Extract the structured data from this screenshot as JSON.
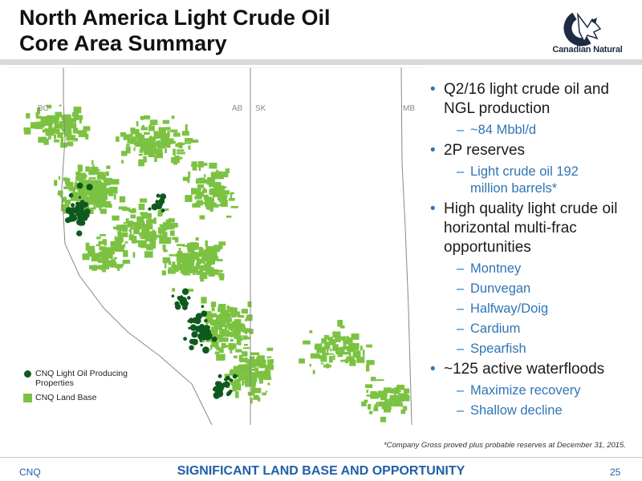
{
  "title": {
    "line1": "North America Light Crude Oil",
    "line2": "Core Area Summary"
  },
  "logo": {
    "name": "Canadian Natural"
  },
  "map": {
    "province_labels": [
      "BC",
      "AB",
      "SK",
      "MB"
    ],
    "legend": [
      {
        "line1": "CNQ Light Oil Producing",
        "line2": "Properties",
        "color": "#0e5a1e"
      },
      {
        "line1": "CNQ Land Base",
        "color": "#7cc242"
      }
    ]
  },
  "bullets": [
    {
      "line1": "Q2/16 light crude oil and",
      "line2": "NGL production",
      "subs": [
        {
          "line1": "~84 Mbbl/d"
        }
      ]
    },
    {
      "line1": "2P reserves",
      "subs": [
        {
          "line1": "Light crude oil 192",
          "line2": "million barrels*"
        }
      ]
    },
    {
      "line1": "High quality light crude oil",
      "line2": "horizontal multi-frac",
      "line3": "opportunities",
      "subs": [
        {
          "line1": "Montney"
        },
        {
          "line1": "Dunvegan"
        },
        {
          "line1": "Halfway/Doig"
        },
        {
          "line1": "Cardium"
        },
        {
          "line1": "Spearfish"
        }
      ]
    },
    {
      "line1": "~125 active waterfloods",
      "subs": [
        {
          "line1": "Maximize recovery"
        },
        {
          "line1": "Shallow decline"
        }
      ]
    }
  ],
  "footnote": "*Company Gross proved plus probable reserves at December 31, 2015.",
  "footer": {
    "left": "CNQ",
    "center": "SIGNIFICANT LAND BASE AND OPPORTUNITY",
    "page": "25"
  },
  "colors": {
    "accent": "#2e75b6",
    "footer": "#1f5fa8",
    "land": "#7cc242",
    "producing": "#0e5a1e"
  },
  "icons": {
    "bullet": "bullet-dot-icon",
    "sub": "en-dash-icon",
    "logo": "canadian-natural-logo"
  }
}
